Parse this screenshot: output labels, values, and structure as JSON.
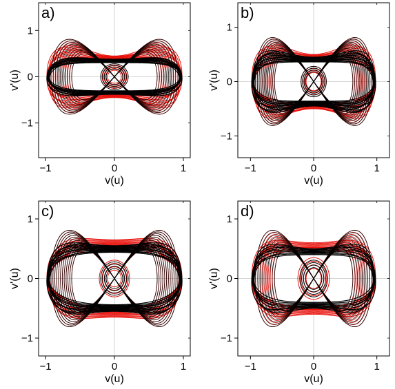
{
  "chart_data": [
    {
      "panel_label": "a)",
      "type": "line",
      "xlabel": "v(u)",
      "ylabel": "v'(u)",
      "xlim": [
        -1.1,
        1.1
      ],
      "ylim": [
        -1.75,
        1.6
      ],
      "xticks": [
        {
          "value": -1,
          "label": "−1"
        },
        {
          "value": 0,
          "label": "0"
        },
        {
          "value": 1,
          "label": "1"
        }
      ],
      "yticks": [
        {
          "value": -1,
          "label": "−1"
        },
        {
          "value": 0,
          "label": "0"
        },
        {
          "value": 1,
          "label": "1"
        }
      ],
      "grid": "zero-lines",
      "series": [
        {
          "color": "#e8120c",
          "edge_min": 0.5,
          "edge_max": 1.45,
          "waist": 0.45,
          "inner_radius": [
            0.1,
            0.18
          ],
          "loops": 11
        },
        {
          "color": "#000000",
          "edge_min": 0.45,
          "edge_max": 0.75,
          "waist": 0.38,
          "inner_radius": [
            0.12,
            0.2
          ],
          "loops": 10
        }
      ]
    },
    {
      "panel_label": "b)",
      "type": "line",
      "xlabel": "v(u)",
      "ylabel": "v'(u)",
      "xlim": [
        -1.2,
        1.2
      ],
      "ylim": [
        -1.4,
        1.45
      ],
      "xticks": [
        {
          "value": -1,
          "label": "−1"
        },
        {
          "value": 0,
          "label": "0"
        },
        {
          "value": 1,
          "label": "1"
        }
      ],
      "yticks": [
        {
          "value": -1,
          "label": "−1"
        },
        {
          "value": 0,
          "label": "0"
        },
        {
          "value": 1,
          "label": "1"
        }
      ],
      "grid": "zero-lines",
      "series": [
        {
          "color": "#e8120c",
          "edge_min": 0.55,
          "edge_max": 1.4,
          "waist": 0.5,
          "inner_radius": [
            0.12,
            0.2
          ],
          "loops": 11
        },
        {
          "color": "#000000",
          "edge_min": 0.55,
          "edge_max": 1.15,
          "waist": 0.45,
          "inner_radius": [
            0.13,
            0.2
          ],
          "loops": 12
        }
      ]
    },
    {
      "panel_label": "c)",
      "type": "line",
      "xlabel": "v(u)",
      "ylabel": "v'(u)",
      "xlim": [
        -1.1,
        1.1
      ],
      "ylim": [
        -1.3,
        1.3
      ],
      "xticks": [
        {
          "value": -1,
          "label": "−1"
        },
        {
          "value": 0,
          "label": "0"
        },
        {
          "value": 1,
          "label": "1"
        }
      ],
      "yticks": [
        {
          "value": -1,
          "label": "−1"
        },
        {
          "value": 0,
          "label": "0"
        },
        {
          "value": 1,
          "label": "1"
        }
      ],
      "grid": "zero-lines",
      "series": [
        {
          "color": "#e8120c",
          "edge_min": 0.5,
          "edge_max": 1.15,
          "waist": 0.65,
          "inner_radius": [
            0.1,
            0.22
          ],
          "loops": 12
        },
        {
          "color": "#000000",
          "edge_min": 0.55,
          "edge_max": 1.1,
          "waist": 0.55,
          "inner_radius": [
            0.12,
            0.2
          ],
          "loops": 12
        }
      ]
    },
    {
      "panel_label": "d)",
      "type": "line",
      "xlabel": "v(u)",
      "ylabel": "v'(u)",
      "xlim": [
        -1.2,
        1.2
      ],
      "ylim": [
        -1.3,
        1.3
      ],
      "xticks": [
        {
          "value": -1,
          "label": "−1"
        },
        {
          "value": 0,
          "label": "0"
        },
        {
          "value": 1,
          "label": "1"
        }
      ],
      "yticks": [
        {
          "value": -1,
          "label": "−1"
        },
        {
          "value": 0,
          "label": "0"
        },
        {
          "value": 1,
          "label": "1"
        }
      ],
      "grid": "zero-lines",
      "series": [
        {
          "color": "#e8120c",
          "edge_min": 0.6,
          "edge_max": 1.15,
          "waist": 0.6,
          "inner_radius": [
            0.12,
            0.25
          ],
          "loops": 10
        },
        {
          "color": "#000000",
          "edge_min": 0.55,
          "edge_max": 1.1,
          "waist": 0.5,
          "inner_radius": [
            0.13,
            0.22
          ],
          "loops": 9
        }
      ]
    }
  ]
}
